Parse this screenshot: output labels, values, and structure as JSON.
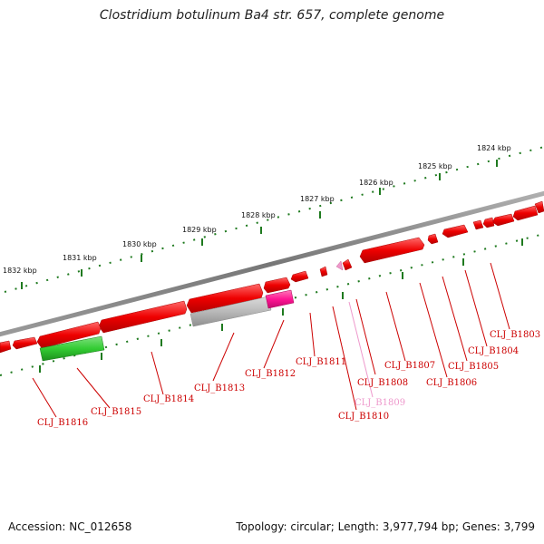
{
  "title": "Clostridium botulinum Ba4 str. 657, complete genome",
  "footer": {
    "accession": "Accession: NC_012658",
    "info": "Topology: circular; Length: 3,977,794 bp; Genes: 3,799"
  },
  "colors": {
    "backbone": "#888888",
    "tick": "#1f7a1f",
    "gene_red": "#ee0000",
    "gene_green": "#33cc33",
    "gene_gray": "#b4b4b4",
    "gene_magenta": "#ff1493",
    "label_red": "#cc0000",
    "label_pink": "#ee99cc"
  },
  "scale_labels": [
    "1824 kbp",
    "1825 kbp",
    "1826 kbp",
    "1827 kbp",
    "1828 kbp",
    "1829 kbp",
    "1830 kbp",
    "1831 kbp",
    "1832 kbp"
  ],
  "gene_labels": [
    {
      "text": "CLJ_B1803",
      "color": "label_red"
    },
    {
      "text": "CLJ_B1804",
      "color": "label_red"
    },
    {
      "text": "CLJ_B1805",
      "color": "label_red"
    },
    {
      "text": "CLJ_B1806",
      "color": "label_red"
    },
    {
      "text": "CLJ_B1807",
      "color": "label_red"
    },
    {
      "text": "CLJ_B1808",
      "color": "label_red"
    },
    {
      "text": "CLJ_B1809",
      "color": "label_pink"
    },
    {
      "text": "CLJ_B1810",
      "color": "label_red"
    },
    {
      "text": "CLJ_B1811",
      "color": "label_red"
    },
    {
      "text": "CLJ_B1812",
      "color": "label_red"
    },
    {
      "text": "CLJ_B1813",
      "color": "label_red"
    },
    {
      "text": "CLJ_B1814",
      "color": "label_red"
    },
    {
      "text": "CLJ_B1815",
      "color": "label_red"
    },
    {
      "text": "CLJ_B1816",
      "color": "label_red"
    }
  ]
}
